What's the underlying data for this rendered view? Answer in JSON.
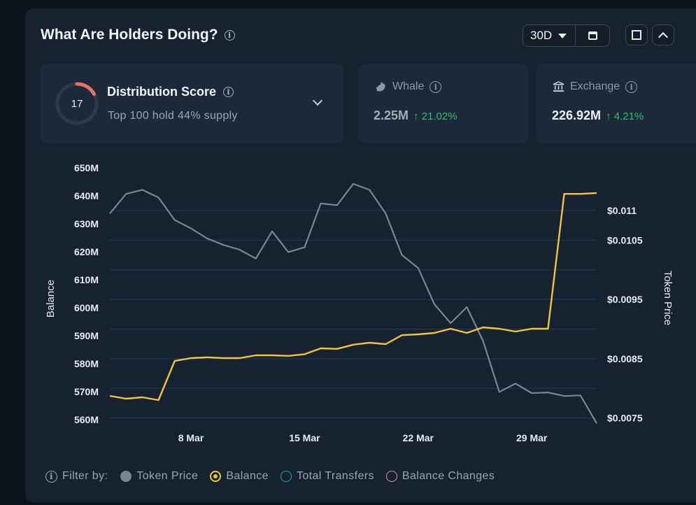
{
  "header": {
    "title": "What Are Holders Doing?",
    "range_label": "30D"
  },
  "distribution": {
    "score": "17",
    "score_value": 17,
    "title": "Distribution Score",
    "subtitle": "Top 100 hold 44% supply"
  },
  "whale": {
    "label": "Whale",
    "value": "2.25M",
    "change": "↑ 21.02%"
  },
  "exchange": {
    "label": "Exchange",
    "value": "226.92M",
    "change": "↑ 4.21%"
  },
  "legend": {
    "filter_label": "Filter by:",
    "items": [
      "Token Price",
      "Balance",
      "Total Transfers",
      "Balance Changes"
    ]
  },
  "colors": {
    "price": "#7a8591",
    "balance": "#f0c53a",
    "transfers": "#20a8a8",
    "changes": "#e08ab6",
    "gauge": "#e8706a",
    "positive": "#2fbf71"
  },
  "chart_data": {
    "type": "line",
    "x": [
      "3 Mar",
      "4 Mar",
      "5 Mar",
      "6 Mar",
      "7 Mar",
      "8 Mar",
      "9 Mar",
      "10 Mar",
      "11 Mar",
      "12 Mar",
      "13 Mar",
      "14 Mar",
      "15 Mar",
      "16 Mar",
      "17 Mar",
      "18 Mar",
      "19 Mar",
      "20 Mar",
      "21 Mar",
      "22 Mar",
      "23 Mar",
      "24 Mar",
      "25 Mar",
      "26 Mar",
      "27 Mar",
      "28 Mar",
      "29 Mar",
      "30 Mar",
      "31 Mar",
      "1 Apr",
      "2 Apr"
    ],
    "x_tick_labels": [
      "8 Mar",
      "15 Mar",
      "22 Mar",
      "29 Mar"
    ],
    "y_left": {
      "label": "Balance",
      "ticks": [
        "560M",
        "570M",
        "580M",
        "590M",
        "600M",
        "610M",
        "620M",
        "630M",
        "640M",
        "650M"
      ],
      "range": [
        560,
        650
      ]
    },
    "y_right": {
      "label": "Token Price",
      "ticks": [
        "$0.0075",
        "$0.0085",
        "$0.0095",
        "$0.0105",
        "$0.011"
      ],
      "range": [
        0.0074,
        0.01165
      ]
    },
    "series": [
      {
        "name": "Token Price",
        "axis": "right",
        "values": [
          0.01095,
          0.01128,
          0.01135,
          0.01122,
          0.01084,
          0.0107,
          0.01053,
          0.01042,
          0.01034,
          0.01019,
          0.01065,
          0.0103,
          0.01038,
          0.01112,
          0.01109,
          0.01145,
          0.01135,
          0.01095,
          0.01025,
          0.01003,
          0.00942,
          0.0091,
          0.00937,
          0.0088,
          0.00794,
          0.00808,
          0.00792,
          0.00793,
          0.00787,
          0.00788,
          0.00741
        ]
      },
      {
        "name": "Balance",
        "axis": "left",
        "values": [
          568.5,
          567.5,
          568,
          567,
          581,
          582,
          582.3,
          582,
          582,
          583,
          583,
          582.8,
          583.4,
          585.5,
          585.3,
          586.8,
          587.5,
          587,
          590.2,
          590.5,
          591,
          592.5,
          591,
          593,
          592.5,
          591.5,
          592.5,
          592.5,
          640.7,
          640.7,
          641
        ]
      }
    ]
  }
}
